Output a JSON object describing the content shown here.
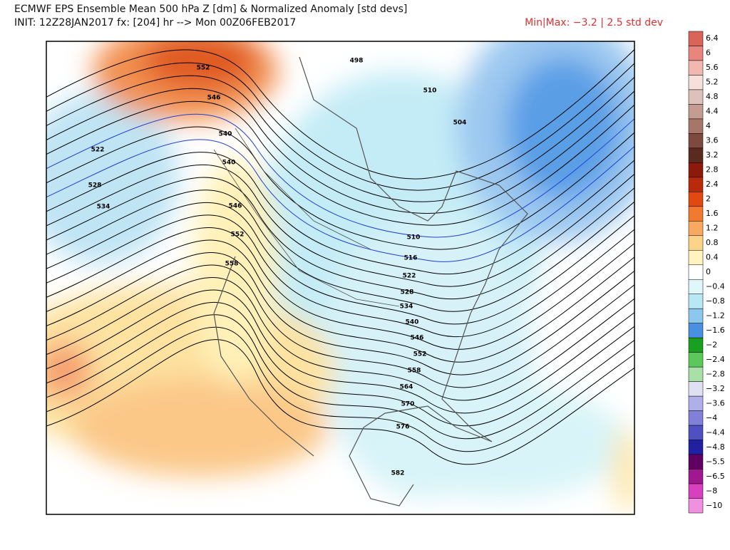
{
  "header": {
    "title": "ECMWF EPS Ensemble Mean 500 hPa Z [dm] & Normalized Anomaly [std devs]",
    "subtitle": "INIT: 12Z28JAN2017 fx: [204] hr --> Mon 00Z06FEB2017",
    "minmax": "Min|Max: −3.2 | 2.5 std dev"
  },
  "colorbar": {
    "labels": [
      "6.4",
      "6",
      "5.6",
      "5.2",
      "4.8",
      "4.4",
      "4",
      "3.6",
      "3.2",
      "2.8",
      "2.4",
      "2",
      "1.6",
      "1.2",
      "0.8",
      "0.4",
      "0",
      "−0.4",
      "−0.8",
      "−1.2",
      "−1.6",
      "−2",
      "−2.4",
      "−2.8",
      "−3.2",
      "−3.6",
      "−4",
      "−4.4",
      "−4.8",
      "−5.5",
      "−6.5",
      "−8",
      "−10"
    ],
    "colors": [
      "#d9645a",
      "#e8857c",
      "#f2b8b0",
      "#f7e0dc",
      "#dcc2ba",
      "#c49c92",
      "#a6766b",
      "#7e4a3f",
      "#5a2a1f",
      "#8b1a0a",
      "#b82a0a",
      "#e04a10",
      "#f07a30",
      "#f8a860",
      "#fcd488",
      "#fff4c0",
      "#ffffff",
      "#e0f6fa",
      "#b8e8f4",
      "#8cc8ee",
      "#4a90e0",
      "#1aa020",
      "#5cc85c",
      "#a8e0a8",
      "#e0e0f4",
      "#b0b0e8",
      "#8080d8",
      "#5050c0",
      "#2020a0",
      "#600060",
      "#a01890",
      "#d840c0",
      "#f090e0"
    ]
  },
  "map": {
    "contour_labels": [
      "552",
      "546",
      "540",
      "522",
      "528",
      "534",
      "540",
      "546",
      "552",
      "558",
      "498",
      "510",
      "504",
      "510",
      "516",
      "522",
      "528",
      "534",
      "540",
      "546",
      "552",
      "558",
      "564",
      "570",
      "576",
      "582"
    ]
  }
}
